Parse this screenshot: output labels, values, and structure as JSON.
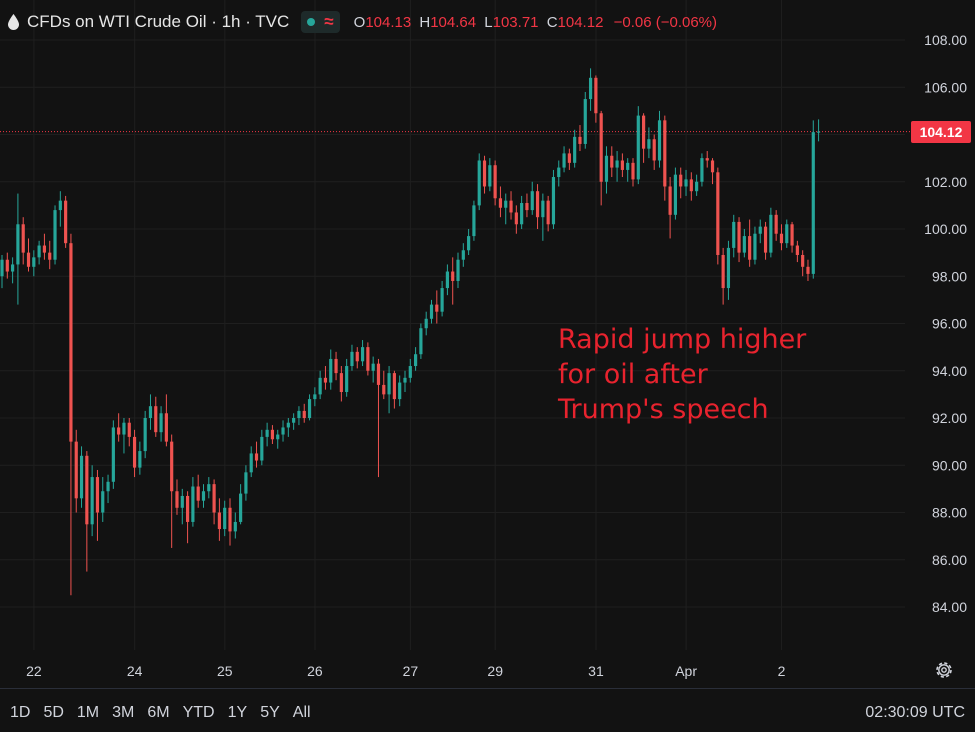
{
  "header": {
    "title": "CFDs on WTI Crude Oil · 1h · TVC",
    "ohlc": {
      "o_label": "O",
      "o_value": "104.13",
      "h_label": "H",
      "h_value": "104.64",
      "l_label": "L",
      "l_value": "103.71",
      "c_label": "C",
      "c_value": "104.12",
      "change": "−0.06 (−0.06%)"
    },
    "status_icon": "market-open-dot-icon",
    "wave_icon": "≈"
  },
  "current_price": {
    "label": "104.12",
    "value": 104.12,
    "color": "#f23645"
  },
  "annotation": {
    "lines": [
      "Rapid jump higher",
      "for oil after",
      "Trump's speech"
    ],
    "color": "#e8232e"
  },
  "colors": {
    "up": "#26a69a",
    "down": "#ef5350",
    "background": "#121212",
    "grid": "#1f1f1f"
  },
  "bottom_bar": {
    "ranges": [
      "1D",
      "5D",
      "1M",
      "3M",
      "6M",
      "YTD",
      "1Y",
      "5Y",
      "All"
    ],
    "clock": "02:30:09 UTC"
  },
  "chart_data": {
    "type": "candlestick",
    "title": "CFDs on WTI Crude Oil · 1h · TVC",
    "ylim": [
      82.5,
      108.5
    ],
    "xlim": [
      0,
      163
    ],
    "y_ticks": [
      "84.00",
      "86.00",
      "88.00",
      "90.00",
      "92.00",
      "94.00",
      "96.00",
      "98.00",
      "100.00",
      "102.00",
      "104.00",
      "106.00",
      "108.00"
    ],
    "x_ticks": [
      {
        "label": "22",
        "x": 3
      },
      {
        "label": "24",
        "x": 22
      },
      {
        "label": "25",
        "x": 39
      },
      {
        "label": "26",
        "x": 56
      },
      {
        "label": "27",
        "x": 74
      },
      {
        "label": "29",
        "x": 90
      },
      {
        "label": "31",
        "x": 109
      },
      {
        "label": "Apr",
        "x": 126
      },
      {
        "label": "2",
        "x": 144
      }
    ],
    "grid": true,
    "legend": "none",
    "candles": [
      [
        98.0,
        98.9,
        97.5,
        98.7
      ],
      [
        98.7,
        99.0,
        97.9,
        98.2
      ],
      [
        98.2,
        98.8,
        97.7,
        98.5
      ],
      [
        98.5,
        101.5,
        96.8,
        100.2
      ],
      [
        100.2,
        100.5,
        98.5,
        99.0
      ],
      [
        99.0,
        99.6,
        98.2,
        98.4
      ],
      [
        98.4,
        99.1,
        98.0,
        98.8
      ],
      [
        98.8,
        99.5,
        98.5,
        99.3
      ],
      [
        99.3,
        99.8,
        98.7,
        99.0
      ],
      [
        99.0,
        99.5,
        98.3,
        98.7
      ],
      [
        98.7,
        101.0,
        98.5,
        100.8
      ],
      [
        100.8,
        101.6,
        100.1,
        101.2
      ],
      [
        101.2,
        101.4,
        99.2,
        99.4
      ],
      [
        99.4,
        99.8,
        84.5,
        91.0
      ],
      [
        91.0,
        91.5,
        88.0,
        88.6
      ],
      [
        88.6,
        90.8,
        88.2,
        90.4
      ],
      [
        90.4,
        90.6,
        85.5,
        87.5
      ],
      [
        87.5,
        90.0,
        87.0,
        89.5
      ],
      [
        89.5,
        89.8,
        86.8,
        88.0
      ],
      [
        88.0,
        89.5,
        87.6,
        88.9
      ],
      [
        88.9,
        89.6,
        88.4,
        89.3
      ],
      [
        89.3,
        91.9,
        89.0,
        91.6
      ],
      [
        91.6,
        92.2,
        91.0,
        91.3
      ],
      [
        91.3,
        92.0,
        90.5,
        91.8
      ],
      [
        91.8,
        92.0,
        90.8,
        91.2
      ],
      [
        91.2,
        91.5,
        89.5,
        89.9
      ],
      [
        89.9,
        91.0,
        89.6,
        90.6
      ],
      [
        90.6,
        92.3,
        90.3,
        92.0
      ],
      [
        92.0,
        93.0,
        91.5,
        92.5
      ],
      [
        92.5,
        92.9,
        91.2,
        91.4
      ],
      [
        91.4,
        92.5,
        91.0,
        92.2
      ],
      [
        92.2,
        93.0,
        90.8,
        91.0
      ],
      [
        91.0,
        91.3,
        86.5,
        88.9
      ],
      [
        88.9,
        89.4,
        87.9,
        88.2
      ],
      [
        88.2,
        89.0,
        87.5,
        88.7
      ],
      [
        88.7,
        88.9,
        86.7,
        87.6
      ],
      [
        87.6,
        89.5,
        87.4,
        89.1
      ],
      [
        89.1,
        89.6,
        88.2,
        88.5
      ],
      [
        88.5,
        89.2,
        88.2,
        88.9
      ],
      [
        88.9,
        89.5,
        88.6,
        89.2
      ],
      [
        89.2,
        89.4,
        87.5,
        88.0
      ],
      [
        88.0,
        88.6,
        86.8,
        87.3
      ],
      [
        87.3,
        88.5,
        87.0,
        88.2
      ],
      [
        88.2,
        88.6,
        86.6,
        87.2
      ],
      [
        87.2,
        88.0,
        86.9,
        87.6
      ],
      [
        87.6,
        89.2,
        87.5,
        88.8
      ],
      [
        88.8,
        90.0,
        88.5,
        89.7
      ],
      [
        89.7,
        90.8,
        89.5,
        90.5
      ],
      [
        90.5,
        91.0,
        89.9,
        90.2
      ],
      [
        90.2,
        91.5,
        90.0,
        91.2
      ],
      [
        91.2,
        91.8,
        90.8,
        91.5
      ],
      [
        91.5,
        91.7,
        90.9,
        91.1
      ],
      [
        91.1,
        91.5,
        90.7,
        91.3
      ],
      [
        91.3,
        91.9,
        91.0,
        91.6
      ],
      [
        91.6,
        92.0,
        91.2,
        91.8
      ],
      [
        91.8,
        92.2,
        91.5,
        92.0
      ],
      [
        92.0,
        92.5,
        91.7,
        92.3
      ],
      [
        92.3,
        92.6,
        91.8,
        92.0
      ],
      [
        92.0,
        93.0,
        91.9,
        92.8
      ],
      [
        92.8,
        93.3,
        92.5,
        93.0
      ],
      [
        93.0,
        94.0,
        92.8,
        93.7
      ],
      [
        93.7,
        94.2,
        93.2,
        93.5
      ],
      [
        93.5,
        94.9,
        93.2,
        94.5
      ],
      [
        94.5,
        94.8,
        93.6,
        93.9
      ],
      [
        93.9,
        94.2,
        92.7,
        93.1
      ],
      [
        93.1,
        94.5,
        92.9,
        94.2
      ],
      [
        94.2,
        95.1,
        94.0,
        94.8
      ],
      [
        94.8,
        95.0,
        94.1,
        94.4
      ],
      [
        94.4,
        95.3,
        94.2,
        95.0
      ],
      [
        95.0,
        95.2,
        93.8,
        94.0
      ],
      [
        94.0,
        94.6,
        93.5,
        94.3
      ],
      [
        94.3,
        94.5,
        89.5,
        93.4
      ],
      [
        93.4,
        94.0,
        92.8,
        93.0
      ],
      [
        93.0,
        94.2,
        92.2,
        93.9
      ],
      [
        93.9,
        94.0,
        92.4,
        92.8
      ],
      [
        92.8,
        93.8,
        92.5,
        93.5
      ],
      [
        93.5,
        94.0,
        93.1,
        93.7
      ],
      [
        93.7,
        94.5,
        93.5,
        94.2
      ],
      [
        94.2,
        95.0,
        94.0,
        94.7
      ],
      [
        94.7,
        96.0,
        94.5,
        95.8
      ],
      [
        95.8,
        96.5,
        95.5,
        96.2
      ],
      [
        96.2,
        97.0,
        96.0,
        96.8
      ],
      [
        96.8,
        97.4,
        96.0,
        96.5
      ],
      [
        96.5,
        97.8,
        96.3,
        97.5
      ],
      [
        97.5,
        98.5,
        97.2,
        98.2
      ],
      [
        98.2,
        98.8,
        96.8,
        97.8
      ],
      [
        97.8,
        99.0,
        97.5,
        98.7
      ],
      [
        98.7,
        99.4,
        98.4,
        99.1
      ],
      [
        99.1,
        100.0,
        98.9,
        99.7
      ],
      [
        99.7,
        101.2,
        99.5,
        101.0
      ],
      [
        101.0,
        103.2,
        100.8,
        102.9
      ],
      [
        102.9,
        103.1,
        101.5,
        101.8
      ],
      [
        101.8,
        103.0,
        101.6,
        102.7
      ],
      [
        102.7,
        102.9,
        101.0,
        101.3
      ],
      [
        101.3,
        101.8,
        100.5,
        100.9
      ],
      [
        100.9,
        101.5,
        100.2,
        101.2
      ],
      [
        101.2,
        101.6,
        100.4,
        100.7
      ],
      [
        100.7,
        101.0,
        99.8,
        100.2
      ],
      [
        100.2,
        101.4,
        100.0,
        101.1
      ],
      [
        101.1,
        101.5,
        100.5,
        100.8
      ],
      [
        100.8,
        102.0,
        100.6,
        101.6
      ],
      [
        101.6,
        101.9,
        100.0,
        100.5
      ],
      [
        100.5,
        101.5,
        99.5,
        101.2
      ],
      [
        101.2,
        101.4,
        99.9,
        100.2
      ],
      [
        100.2,
        102.5,
        100.0,
        102.2
      ],
      [
        102.2,
        102.9,
        101.8,
        102.6
      ],
      [
        102.6,
        103.5,
        102.4,
        103.2
      ],
      [
        103.2,
        103.4,
        102.5,
        102.8
      ],
      [
        102.8,
        104.2,
        102.6,
        103.9
      ],
      [
        103.9,
        104.4,
        103.3,
        103.6
      ],
      [
        103.6,
        105.8,
        103.4,
        105.5
      ],
      [
        105.5,
        106.8,
        105.0,
        106.4
      ],
      [
        106.4,
        106.5,
        104.5,
        104.9
      ],
      [
        104.9,
        105.0,
        101.0,
        102.0
      ],
      [
        102.0,
        103.5,
        101.5,
        103.1
      ],
      [
        103.1,
        103.5,
        102.2,
        102.6
      ],
      [
        102.6,
        103.3,
        102.0,
        102.9
      ],
      [
        102.9,
        103.2,
        102.2,
        102.5
      ],
      [
        102.5,
        103.0,
        102.0,
        102.8
      ],
      [
        102.8,
        103.0,
        101.8,
        102.1
      ],
      [
        102.1,
        105.2,
        101.9,
        104.8
      ],
      [
        104.8,
        104.9,
        102.8,
        103.4
      ],
      [
        103.4,
        104.3,
        103.0,
        103.8
      ],
      [
        103.8,
        104.0,
        102.5,
        102.9
      ],
      [
        102.9,
        105.0,
        102.6,
        104.6
      ],
      [
        104.6,
        104.8,
        101.2,
        101.8
      ],
      [
        101.8,
        102.2,
        99.6,
        100.6
      ],
      [
        100.6,
        102.6,
        100.4,
        102.3
      ],
      [
        102.3,
        102.6,
        101.3,
        101.8
      ],
      [
        101.8,
        102.5,
        101.4,
        102.1
      ],
      [
        102.1,
        102.4,
        101.2,
        101.6
      ],
      [
        101.6,
        102.3,
        101.4,
        102.0
      ],
      [
        102.0,
        103.2,
        101.8,
        103.0
      ],
      [
        103.0,
        103.3,
        102.6,
        102.9
      ],
      [
        102.9,
        103.0,
        101.9,
        102.4
      ],
      [
        102.4,
        102.6,
        98.5,
        98.9
      ],
      [
        98.9,
        99.2,
        96.8,
        97.5
      ],
      [
        97.5,
        99.5,
        97.0,
        99.2
      ],
      [
        99.2,
        100.6,
        98.8,
        100.3
      ],
      [
        100.3,
        100.5,
        98.6,
        99.0
      ],
      [
        99.0,
        100.0,
        98.8,
        99.7
      ],
      [
        99.7,
        100.4,
        98.4,
        98.7
      ],
      [
        98.7,
        100.1,
        98.5,
        99.8
      ],
      [
        99.8,
        100.4,
        99.4,
        100.1
      ],
      [
        100.1,
        100.3,
        98.7,
        99.0
      ],
      [
        99.0,
        100.9,
        98.8,
        100.6
      ],
      [
        100.6,
        100.8,
        99.5,
        99.8
      ],
      [
        99.8,
        100.2,
        99.1,
        99.4
      ],
      [
        99.4,
        100.4,
        99.2,
        100.2
      ],
      [
        100.2,
        100.3,
        99.0,
        99.3
      ],
      [
        99.3,
        99.5,
        98.6,
        98.9
      ],
      [
        98.9,
        99.1,
        98.0,
        98.4
      ],
      [
        98.4,
        98.7,
        97.8,
        98.1
      ],
      [
        98.1,
        104.6,
        97.9,
        104.1
      ],
      [
        104.1,
        104.64,
        103.71,
        104.12
      ]
    ]
  }
}
